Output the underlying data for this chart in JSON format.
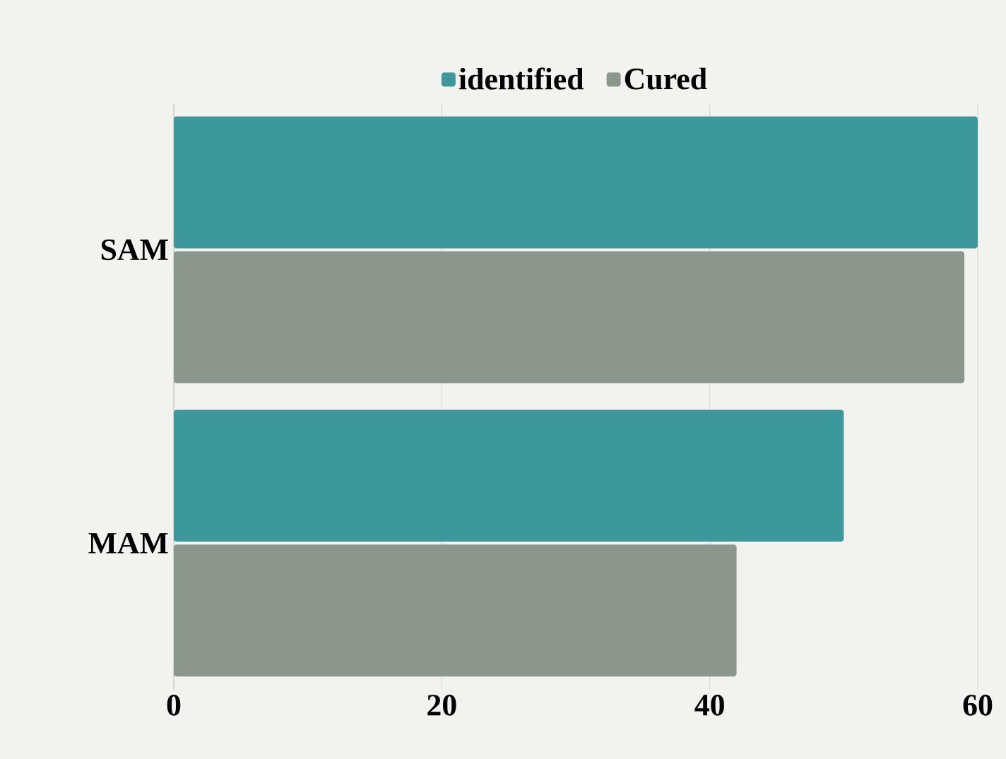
{
  "chart_data": {
    "type": "bar",
    "orientation": "horizontal",
    "categories": [
      "SAM",
      "MAM"
    ],
    "series": [
      {
        "name": "identified",
        "color": "#3d989b",
        "values": [
          60,
          50
        ]
      },
      {
        "name": "Cured",
        "color": "#8c978b",
        "values": [
          59,
          42
        ]
      }
    ],
    "xlim": [
      0,
      60
    ],
    "xticks": [
      0,
      20,
      40,
      60
    ],
    "grid": "x",
    "legend": "top"
  }
}
